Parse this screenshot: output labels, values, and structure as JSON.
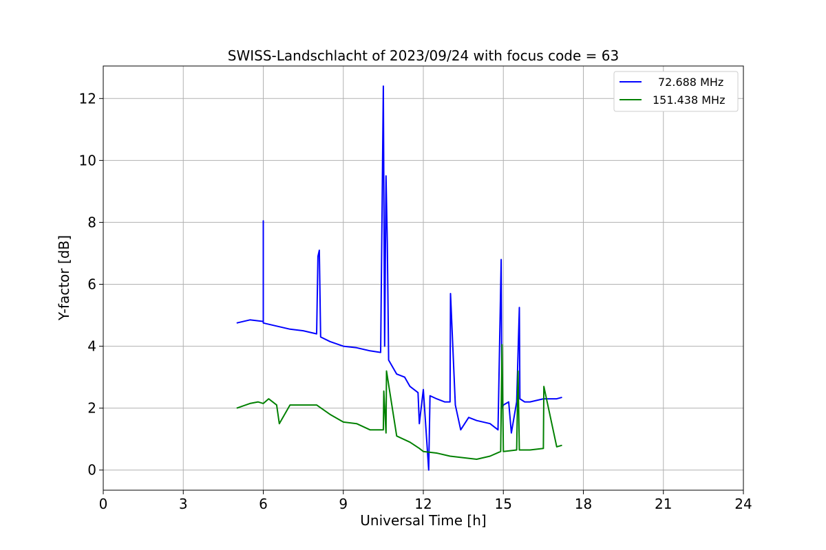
{
  "chart_data": {
    "type": "line",
    "title": "SWISS-Landschlacht of 2023/09/24 with focus code = 63",
    "xlabel": "Universal Time [h]",
    "ylabel": "Y-factor [dB]",
    "xlim": [
      0,
      24
    ],
    "ylim": [
      -0.65,
      13.05
    ],
    "xticks": [
      0,
      3,
      6,
      9,
      12,
      15,
      18,
      21,
      24
    ],
    "yticks": [
      0,
      2,
      4,
      6,
      8,
      10,
      12
    ],
    "grid": true,
    "legend_position": "top-right",
    "series": [
      {
        "name": "72.688 MHz",
        "color": "#0000ff",
        "x": [
          5.0,
          5.5,
          6.0,
          6.0,
          6.0,
          6.5,
          7.0,
          7.5,
          8.0,
          8.05,
          8.1,
          8.15,
          8.5,
          9.0,
          9.5,
          10.0,
          10.4,
          10.5,
          10.55,
          10.6,
          10.65,
          10.7,
          11.0,
          11.3,
          11.5,
          11.8,
          11.85,
          12.0,
          12.2,
          12.25,
          12.5,
          12.8,
          13.0,
          13.02,
          13.2,
          13.4,
          13.7,
          14.0,
          14.5,
          14.8,
          14.92,
          14.95,
          15.0,
          15.2,
          15.3,
          15.5,
          15.6,
          15.62,
          15.8,
          16.0,
          16.5,
          17.0,
          17.2
        ],
        "y": [
          4.75,
          4.85,
          4.8,
          8.05,
          4.75,
          4.65,
          4.55,
          4.5,
          4.4,
          6.9,
          7.1,
          4.3,
          4.15,
          4.0,
          3.95,
          3.85,
          3.8,
          12.4,
          4.0,
          9.5,
          7.3,
          3.55,
          3.1,
          3.0,
          2.7,
          2.5,
          1.5,
          2.6,
          0.0,
          2.4,
          2.3,
          2.2,
          2.2,
          5.7,
          2.1,
          1.3,
          1.7,
          1.6,
          1.5,
          1.3,
          6.8,
          2.0,
          2.1,
          2.2,
          1.2,
          2.2,
          5.25,
          2.3,
          2.2,
          2.2,
          2.3,
          2.3,
          2.35
        ]
      },
      {
        "name": "151.438 MHz",
        "color": "#008000",
        "x": [
          5.0,
          5.5,
          5.8,
          6.0,
          6.2,
          6.5,
          6.6,
          7.0,
          7.5,
          8.0,
          8.5,
          9.0,
          9.5,
          10.0,
          10.5,
          10.52,
          10.6,
          10.62,
          11.0,
          11.5,
          11.85,
          12.0,
          12.5,
          13.0,
          13.5,
          14.0,
          14.5,
          14.9,
          14.95,
          15.0,
          15.5,
          15.55,
          15.6,
          16.0,
          16.5,
          16.52,
          17.0,
          17.2
        ],
        "y": [
          2.0,
          2.15,
          2.2,
          2.15,
          2.3,
          2.1,
          1.5,
          2.1,
          2.1,
          2.1,
          1.8,
          1.55,
          1.5,
          1.3,
          1.3,
          2.55,
          1.2,
          3.2,
          1.1,
          0.9,
          0.7,
          0.6,
          0.55,
          0.45,
          0.4,
          0.35,
          0.45,
          0.6,
          4.05,
          0.6,
          0.65,
          3.2,
          0.65,
          0.65,
          0.7,
          2.7,
          0.75,
          0.8
        ]
      }
    ]
  }
}
